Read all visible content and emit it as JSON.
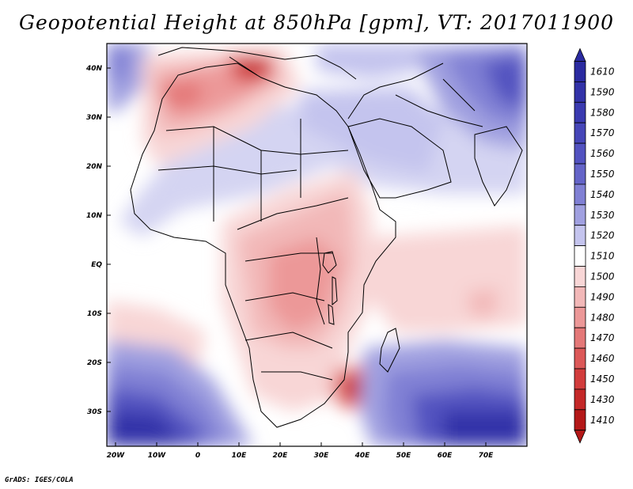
{
  "title": "Geopotential Height at 850hPa [gpm], VT: 2017011900",
  "credit": "GrADS: IGES/COLA",
  "map": {
    "variable": "Geopotential Height",
    "level": "850hPa",
    "units": "gpm",
    "valid_time": "2017011900",
    "lon_labels": [
      "20W",
      "10W",
      "0",
      "10E",
      "20E",
      "30E",
      "40E",
      "50E",
      "60E",
      "70E"
    ],
    "lat_labels": [
      "40N",
      "30N",
      "20N",
      "10N",
      "EQ",
      "10S",
      "20S",
      "30S"
    ]
  },
  "colorbar": {
    "levels": [
      "1610",
      "1590",
      "1580",
      "1570",
      "1560",
      "1550",
      "1540",
      "1530",
      "1520",
      "1510",
      "1500",
      "1490",
      "1480",
      "1470",
      "1460",
      "1450",
      "1430",
      "1410"
    ],
    "colors": [
      "#2a2aa0",
      "#3232a8",
      "#3a3ab0",
      "#4646b8",
      "#5252c0",
      "#6464c8",
      "#8080d4",
      "#a0a0e0",
      "#c4c4ee",
      "#ffffff",
      "#f8d6d6",
      "#f2b8b8",
      "#ec9898",
      "#e47878",
      "#dc5858",
      "#d23c3c",
      "#c42828",
      "#b41818"
    ]
  }
}
